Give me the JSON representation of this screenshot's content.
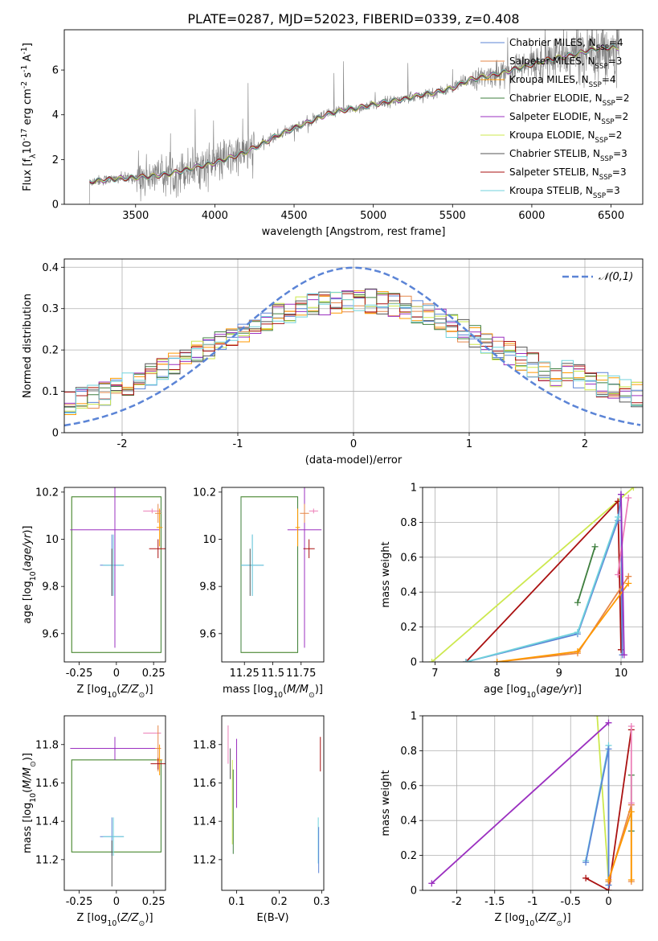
{
  "figure": {
    "title": "PLATE=0287, MJD=52023, FIBERID=0339, z=0.408"
  },
  "palette": {
    "Chabrier MILES": "#5b84d6",
    "Salpeter MILES": "#e6874a",
    "Kroupa MILES": "#ff9900",
    "Chabrier ELODIE": "#3f7f3f",
    "Salpeter ELODIE": "#9b30c0",
    "Kroupa ELODIE": "#cde84f",
    "Chabrier STELIB": "#555555",
    "Salpeter STELIB": "#aa1111",
    "Kroupa STELIB": "#70d2dc",
    "pink": "#ec7fb8",
    "normal": "#5b84d6",
    "data": "#7f7f7f"
  },
  "chart_data": [
    {
      "id": "spectrum",
      "type": "line",
      "ylabel": "Flux [f$_\\lambda$10$^{-17}$ erg cm$^{-2}$ s$^{-1}$ A$^{-1}$]",
      "xlabel": "wavelength [Angstrom, rest frame]",
      "xlim": [
        3050,
        6700
      ],
      "ylim": [
        0,
        7.8
      ],
      "xticks": [
        3500,
        4000,
        4500,
        5000,
        5500,
        6000,
        6500
      ],
      "yticks": [
        0,
        2,
        4,
        6
      ],
      "legend_position": "top-right",
      "grid": false,
      "legend": [
        {
          "label": "Chabrier MILES, N$_{SSP}$=4",
          "key": "Chabrier MILES"
        },
        {
          "label": "Salpeter MILES, N$_{SSP}$=3",
          "key": "Salpeter MILES"
        },
        {
          "label": "Kroupa MILES, N$_{SSP}$=4",
          "key": "Kroupa MILES"
        },
        {
          "label": "Chabrier ELODIE, N$_{SSP}$=2",
          "key": "Chabrier ELODIE"
        },
        {
          "label": "Salpeter ELODIE, N$_{SSP}$=2",
          "key": "Salpeter ELODIE"
        },
        {
          "label": "Kroupa ELODIE, N$_{SSP}$=2",
          "key": "Kroupa ELODIE"
        },
        {
          "label": "Chabrier STELIB, N$_{SSP}$=3",
          "key": "Chabrier STELIB"
        },
        {
          "label": "Salpeter STELIB, N$_{SSP}$=3",
          "key": "Salpeter STELIB"
        },
        {
          "label": "Kroupa STELIB, N$_{SSP}$=3",
          "key": "Kroupa STELIB"
        }
      ],
      "continuum": {
        "x": [
          3200,
          3250,
          3400,
          3500,
          3600,
          3700,
          3800,
          3900,
          4000,
          4100,
          4200,
          4300,
          4400,
          4500,
          4600,
          4700,
          4800,
          4900,
          5000,
          5100,
          5200,
          5300,
          5400,
          5500,
          5600,
          5700,
          5800,
          5900,
          6000,
          6100,
          6200,
          6300,
          6400,
          6500,
          6550
        ],
        "y": [
          1.0,
          1.05,
          1.15,
          1.2,
          1.25,
          1.35,
          1.5,
          1.7,
          1.85,
          2.1,
          2.35,
          2.7,
          3.1,
          3.4,
          3.7,
          4.0,
          4.2,
          4.3,
          4.45,
          4.6,
          4.7,
          4.9,
          5.0,
          5.2,
          5.55,
          5.7,
          5.85,
          6.05,
          6.25,
          6.45,
          6.6,
          6.75,
          6.95,
          7.0,
          7.0
        ]
      }
    },
    {
      "id": "residuals",
      "type": "line",
      "xlabel": "(data-model)/error",
      "ylabel": "Normed distribution",
      "xlim": [
        -2.5,
        2.5
      ],
      "ylim": [
        0,
        0.42
      ],
      "xticks": [
        -2,
        -1,
        0,
        1,
        2
      ],
      "yticks": [
        0.0,
        0.1,
        0.2,
        0.3,
        0.4
      ],
      "grid": true,
      "legend_position": "top-right",
      "legend": [
        {
          "label": "$\\mathcal{N}(0,1)$",
          "key": "normal"
        }
      ],
      "normal": {
        "mean": 0,
        "sigma": 1
      }
    },
    {
      "id": "age_vs_Z",
      "type": "scatter",
      "xlabel": "Z [log$_{10}$($Z/Z_\\odot$)]",
      "ylabel": "age  [log$_{10}$($age/yr$)]",
      "xlim": [
        -0.35,
        0.33
      ],
      "ylim": [
        9.48,
        10.22
      ],
      "xticks": [
        -0.25,
        0.0,
        0.25
      ],
      "yticks": [
        9.6,
        9.8,
        10.0,
        10.2
      ],
      "points": [
        {
          "key": "Chabrier MILES",
          "x": -0.03,
          "y": 9.89,
          "xerr": 0.08,
          "yerr": 0.13
        },
        {
          "key": "Kroupa STELIB",
          "x": -0.02,
          "y": 9.89,
          "xerr": 0.07,
          "yerr": 0.13
        },
        {
          "key": "Chabrier STELIB",
          "x": -0.03,
          "y": 9.86,
          "xerr": 0.0,
          "yerr": 0.1
        },
        {
          "key": "Salpeter ELODIE",
          "x": -0.01,
          "y": 10.04,
          "xerr": 0.3,
          "yerr": 0.5
        },
        {
          "key": "Salpeter STELIB",
          "x": 0.28,
          "y": 9.96,
          "xerr": 0.06,
          "yerr": 0.04
        },
        {
          "key": "pink",
          "x": 0.24,
          "y": 10.12,
          "xerr": 0.06,
          "yerr": 0.01
        },
        {
          "key": "Salpeter MILES",
          "x": 0.28,
          "y": 10.11,
          "xerr": 0.02,
          "yerr": 0.04
        },
        {
          "key": "Kroupa MILES",
          "x": 0.29,
          "y": 10.05,
          "xerr": 0.02,
          "yerr": 0.08
        }
      ],
      "boxes": [
        {
          "key": "Kroupa ELODIE",
          "x": [
            -0.3,
            0.3
          ],
          "y": [
            9.52,
            10.18
          ]
        },
        {
          "key": "Chabrier ELODIE",
          "x": [
            -0.3,
            0.3
          ],
          "y": [
            9.52,
            10.18
          ]
        }
      ]
    },
    {
      "id": "age_vs_mass",
      "type": "scatter",
      "xlabel": "mass [log$_{10}$($M/M_\\odot$)]",
      "ylabel": "",
      "xlim": [
        11.05,
        11.95
      ],
      "ylim": [
        9.48,
        10.22
      ],
      "xticks": [
        11.25,
        11.5,
        11.75
      ],
      "yticks": [
        9.6,
        9.8,
        10.0,
        10.2
      ],
      "points": [
        {
          "key": "Chabrier MILES",
          "x": 11.32,
          "y": 9.89,
          "xerr": 0.1,
          "yerr": 0.13
        },
        {
          "key": "Kroupa STELIB",
          "x": 11.32,
          "y": 9.89,
          "xerr": 0.1,
          "yerr": 0.13
        },
        {
          "key": "Chabrier STELIB",
          "x": 11.3,
          "y": 9.86,
          "xerr": 0.0,
          "yerr": 0.1
        },
        {
          "key": "Salpeter ELODIE",
          "x": 11.78,
          "y": 10.04,
          "xerr": 0.15,
          "yerr": 0.5
        },
        {
          "key": "Salpeter STELIB",
          "x": 11.82,
          "y": 9.96,
          "xerr": 0.05,
          "yerr": 0.04
        },
        {
          "key": "pink",
          "x": 11.86,
          "y": 10.12,
          "xerr": 0.04,
          "yerr": 0.01
        },
        {
          "key": "Salpeter MILES",
          "x": 11.78,
          "y": 10.11,
          "xerr": 0.04,
          "yerr": 0.04
        },
        {
          "key": "Kroupa MILES",
          "x": 11.72,
          "y": 10.05,
          "xerr": 0.02,
          "yerr": 0.08
        }
      ],
      "boxes": [
        {
          "key": "Kroupa ELODIE",
          "x": [
            11.22,
            11.72
          ],
          "y": [
            9.52,
            10.18
          ]
        },
        {
          "key": "Chabrier ELODIE",
          "x": [
            11.22,
            11.72
          ],
          "y": [
            9.52,
            10.18
          ]
        }
      ]
    },
    {
      "id": "mass_weight_vs_age",
      "type": "line",
      "xlabel": "age  [log$_{10}$($age/yr$)]",
      "ylabel": "mass weight",
      "xlim": [
        6.8,
        10.35
      ],
      "ylim": [
        0,
        1.0
      ],
      "xticks": [
        7,
        8,
        9,
        10
      ],
      "yticks": [
        0.0,
        0.2,
        0.4,
        0.6,
        0.8,
        1.0
      ],
      "grid": true,
      "series": [
        {
          "key": "Kroupa ELODIE",
          "x": [
            6.95,
            10.2
          ],
          "y": [
            0.0,
            1.0
          ]
        },
        {
          "key": "Salpeter STELIB",
          "x": [
            7.5,
            9.95,
            10.0
          ],
          "y": [
            0.0,
            0.92,
            0.07
          ]
        },
        {
          "key": "Chabrier MILES",
          "x": [
            7.5,
            9.3,
            9.95,
            10.0,
            10.02
          ],
          "y": [
            0.0,
            0.16,
            0.81,
            0.96,
            0.04
          ]
        },
        {
          "key": "Kroupa STELIB",
          "x": [
            7.5,
            9.3,
            9.95
          ],
          "y": [
            0.0,
            0.17,
            0.83
          ]
        },
        {
          "key": "Chabrier ELODIE",
          "x": [
            9.3,
            9.58
          ],
          "y": [
            0.34,
            0.66
          ]
        },
        {
          "key": "Salpeter MILES",
          "x": [
            8.0,
            9.3,
            10.12
          ],
          "y": [
            0.0,
            0.05,
            0.49
          ]
        },
        {
          "key": "Kroupa MILES",
          "x": [
            8.0,
            9.3,
            10.12
          ],
          "y": [
            0.0,
            0.06,
            0.45
          ]
        },
        {
          "key": "pink",
          "x": [
            9.95,
            10.12
          ],
          "y": [
            0.5,
            0.94
          ]
        },
        {
          "key": "Salpeter ELODIE",
          "x": [
            10.0,
            10.05
          ],
          "y": [
            0.96,
            0.04
          ]
        }
      ]
    },
    {
      "id": "mass_vs_Z",
      "type": "scatter",
      "xlabel": "Z [log$_{10}$($Z/Z_\\odot$)]",
      "ylabel": "mass [log$_{10}$($M/M_\\odot$)]",
      "xlim": [
        -0.35,
        0.33
      ],
      "ylim": [
        11.04,
        11.95
      ],
      "xticks": [
        -0.25,
        0.0,
        0.25
      ],
      "yticks": [
        11.2,
        11.4,
        11.6,
        11.8
      ],
      "points": [
        {
          "key": "Chabrier MILES",
          "x": -0.03,
          "y": 11.32,
          "xerr": 0.08,
          "yerr": 0.1
        },
        {
          "key": "Kroupa STELIB",
          "x": -0.02,
          "y": 11.32,
          "xerr": 0.07,
          "yerr": 0.1
        },
        {
          "key": "Chabrier STELIB",
          "x": -0.03,
          "y": 11.18,
          "xerr": 0.0,
          "yerr": 0.12
        },
        {
          "key": "Salpeter ELODIE",
          "x": -0.01,
          "y": 11.78,
          "xerr": 0.3,
          "yerr": 0.06
        },
        {
          "key": "pink",
          "x": 0.24,
          "y": 11.86,
          "xerr": 0.06,
          "yerr": 0.0
        },
        {
          "key": "Salpeter MILES",
          "x": 0.28,
          "y": 11.78,
          "xerr": 0.02,
          "yerr": 0.12
        },
        {
          "key": "Kroupa MILES",
          "x": 0.29,
          "y": 11.72,
          "xerr": 0.02,
          "yerr": 0.08
        },
        {
          "key": "Salpeter STELIB",
          "x": 0.28,
          "y": 11.7,
          "xerr": 0.05,
          "yerr": 0.03
        }
      ],
      "boxes": [
        {
          "key": "Kroupa ELODIE",
          "x": [
            -0.3,
            0.3
          ],
          "y": [
            11.24,
            11.72
          ]
        },
        {
          "key": "Chabrier ELODIE",
          "x": [
            -0.3,
            0.3
          ],
          "y": [
            11.24,
            11.72
          ]
        }
      ]
    },
    {
      "id": "mass_vs_ebv",
      "type": "scatter",
      "xlabel": "E(B-V)",
      "ylabel": "",
      "xlim": [
        0.065,
        0.305
      ],
      "ylim": [
        11.04,
        11.95
      ],
      "xticks": [
        0.1,
        0.2,
        0.3
      ],
      "yticks": [
        11.2,
        11.4,
        11.6,
        11.8
      ],
      "points": [
        {
          "key": "pink",
          "x": 0.08,
          "y": 11.8,
          "xerr": 0.0,
          "yerr": 0.1
        },
        {
          "key": "Chabrier STELIB",
          "x": 0.085,
          "y": 11.7,
          "xerr": 0.0,
          "yerr": 0.08
        },
        {
          "key": "Kroupa ELODIE",
          "x": 0.09,
          "y": 11.5,
          "xerr": 0.0,
          "yerr": 0.22
        },
        {
          "key": "Chabrier ELODIE",
          "x": 0.092,
          "y": 11.45,
          "xerr": 0.0,
          "yerr": 0.22
        },
        {
          "key": "Salpeter ELODIE",
          "x": 0.1,
          "y": 11.65,
          "xerr": 0.0,
          "yerr": 0.18
        },
        {
          "key": "Salpeter STELIB",
          "x": 0.297,
          "y": 11.75,
          "xerr": 0.0,
          "yerr": 0.09
        },
        {
          "key": "Kroupa STELIB",
          "x": 0.292,
          "y": 11.3,
          "xerr": 0.0,
          "yerr": 0.12
        },
        {
          "key": "Chabrier MILES",
          "x": 0.293,
          "y": 11.25,
          "xerr": 0.0,
          "yerr": 0.12
        }
      ]
    },
    {
      "id": "mass_weight_vs_Z",
      "type": "line",
      "xlabel": "Z [log$_{10}$($Z/Z_\\odot$)]",
      "ylabel": "mass weight",
      "xlim": [
        -2.45,
        0.45
      ],
      "ylim": [
        0,
        1.0
      ],
      "xticks": [
        -2.0,
        -1.5,
        -1.0,
        -0.5,
        0.0
      ],
      "yticks": [
        0.0,
        0.2,
        0.4,
        0.6,
        0.8,
        1.0
      ],
      "grid": true,
      "series": [
        {
          "key": "Kroupa ELODIE",
          "x": [
            -0.15,
            0.0
          ],
          "y": [
            1.0,
            0.05
          ]
        },
        {
          "key": "Salpeter ELODIE",
          "x": [
            -2.33,
            0.0
          ],
          "y": [
            0.04,
            0.96
          ]
        },
        {
          "key": "Salpeter STELIB",
          "x": [
            -0.3,
            0.0,
            0.3
          ],
          "y": [
            0.07,
            0.0,
            0.92
          ]
        },
        {
          "key": "Kroupa STELIB",
          "x": [
            -0.3,
            0.0,
            0.0
          ],
          "y": [
            0.17,
            0.83,
            0.03
          ]
        },
        {
          "key": "Chabrier MILES",
          "x": [
            -0.3,
            0.0,
            0.0
          ],
          "y": [
            0.16,
            0.81,
            0.03
          ]
        },
        {
          "key": "Chabrier ELODIE",
          "x": [
            0.3,
            0.3
          ],
          "y": [
            0.34,
            0.66
          ]
        },
        {
          "key": "Salpeter MILES",
          "x": [
            0.0,
            0.3,
            0.3
          ],
          "y": [
            0.05,
            0.49,
            0.05
          ]
        },
        {
          "key": "Kroupa MILES",
          "x": [
            0.0,
            0.3,
            0.3
          ],
          "y": [
            0.06,
            0.45,
            0.06
          ]
        },
        {
          "key": "pink",
          "x": [
            0.3,
            0.3
          ],
          "y": [
            0.5,
            0.94
          ]
        }
      ]
    }
  ]
}
